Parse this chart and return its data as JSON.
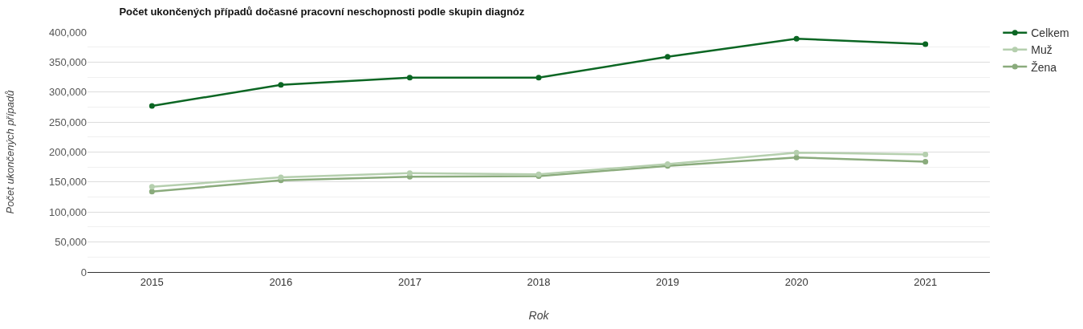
{
  "chart_data": {
    "type": "line",
    "title": "Počet ukončených případů dočasné pracovní neschopnosti podle skupin diagnóz",
    "xlabel": "Rok",
    "ylabel": "Počet ukončených případů",
    "categories": [
      "2015",
      "2016",
      "2017",
      "2018",
      "2019",
      "2020",
      "2021"
    ],
    "series": [
      {
        "name": "Celkem",
        "color": "#0b6623",
        "values": [
          277000,
          312000,
          324000,
          324000,
          359000,
          389000,
          380000
        ]
      },
      {
        "name": "Muž",
        "color": "#b5cfae",
        "values": [
          142000,
          158000,
          165000,
          163000,
          180000,
          199000,
          196000
        ]
      },
      {
        "name": "Žena",
        "color": "#8aab7c",
        "values": [
          134000,
          153000,
          159000,
          160000,
          177000,
          191000,
          184000
        ]
      }
    ],
    "ylim": [
      0,
      400000
    ],
    "yticks": [
      {
        "value": 0,
        "label": "0"
      },
      {
        "value": 50000,
        "label": "50,000"
      },
      {
        "value": 100000,
        "label": "100,000"
      },
      {
        "value": 150000,
        "label": "150,000"
      },
      {
        "value": 200000,
        "label": "200,000"
      },
      {
        "value": 250000,
        "label": "250,000"
      },
      {
        "value": 300000,
        "label": "300,000"
      },
      {
        "value": 350000,
        "label": "350,000"
      },
      {
        "value": 400000,
        "label": "400,000"
      }
    ],
    "grid": "y",
    "legend": "top right",
    "marker": "circle",
    "line_style": "solid"
  }
}
